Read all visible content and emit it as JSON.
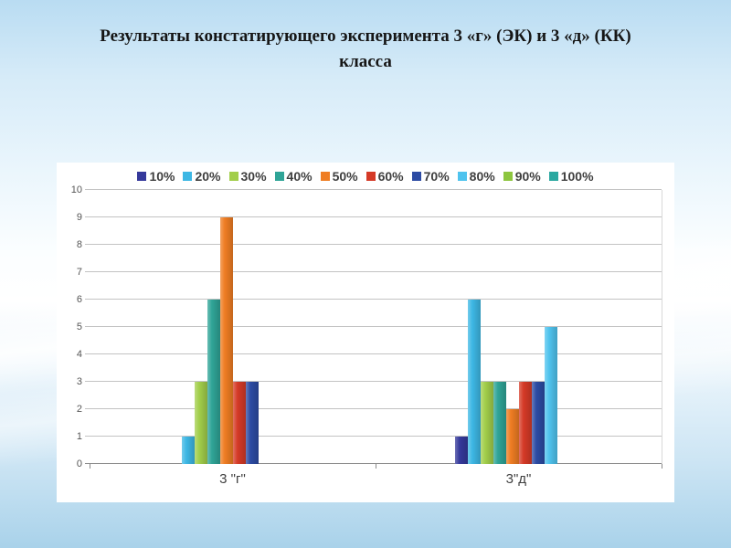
{
  "slide": {
    "title_line1": "Результаты констатирующего эксперимента 3 «г» (ЭК) и 3 «д» (КК)",
    "title_line2": "класса"
  },
  "chart_data": {
    "type": "bar",
    "title": "Результаты констатирующего эксперимента 3 «г» (ЭК) и 3 «д» (КК) класса",
    "categories": [
      "3 \"г\"",
      "3\"д\""
    ],
    "series": [
      {
        "name": "10%",
        "color": "#35399b",
        "values": [
          0,
          1
        ]
      },
      {
        "name": "20%",
        "color": "#3db7e4",
        "values": [
          1,
          6
        ]
      },
      {
        "name": "30%",
        "color": "#a2ce4a",
        "values": [
          3,
          3
        ]
      },
      {
        "name": "40%",
        "color": "#2fa497",
        "values": [
          6,
          3
        ]
      },
      {
        "name": "50%",
        "color": "#ef7d23",
        "values": [
          9,
          2
        ]
      },
      {
        "name": "60%",
        "color": "#d53a27",
        "values": [
          3,
          3
        ]
      },
      {
        "name": "70%",
        "color": "#2c4ba3",
        "values": [
          3,
          3
        ]
      },
      {
        "name": "80%",
        "color": "#4fc3ee",
        "values": [
          0,
          5
        ]
      },
      {
        "name": "90%",
        "color": "#8dc63f",
        "values": [
          0,
          0
        ]
      },
      {
        "name": "100%",
        "color": "#2ba8a0",
        "values": [
          0,
          0
        ]
      }
    ],
    "xlabel": "",
    "ylabel": "",
    "ylim": [
      0,
      10
    ],
    "ytick_step": 1,
    "grid": true,
    "legend_position": "top"
  }
}
